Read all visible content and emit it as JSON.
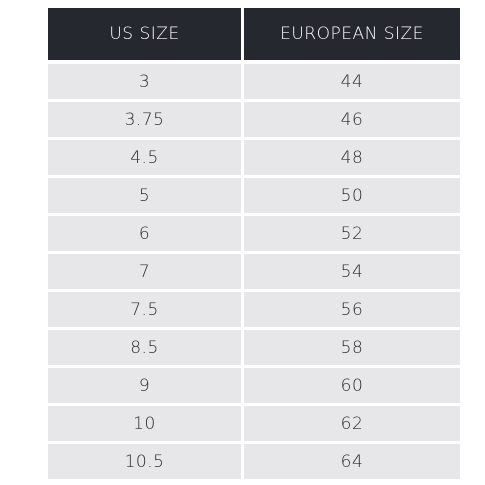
{
  "table": {
    "header": [
      "US SIZE",
      "EUROPEAN SIZE"
    ],
    "rows": [
      [
        "3",
        "44"
      ],
      [
        "3.75",
        "46"
      ],
      [
        "4.5",
        "48"
      ],
      [
        "5",
        "50"
      ],
      [
        "6",
        "52"
      ],
      [
        "7",
        "54"
      ],
      [
        "7.5",
        "56"
      ],
      [
        "8.5",
        "58"
      ],
      [
        "9",
        "60"
      ],
      [
        "10",
        "62"
      ],
      [
        "10.5",
        "64"
      ]
    ]
  }
}
